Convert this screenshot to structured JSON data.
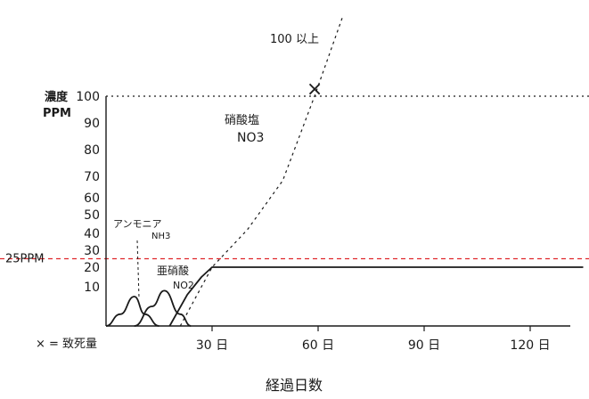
{
  "chart_data": {
    "type": "line",
    "title": "",
    "xlabel": "経過日数",
    "ylabel_line1": "濃度",
    "ylabel_line2": "PPM",
    "xlim": [
      -5,
      135
    ],
    "ylim": [
      0,
      100
    ],
    "x_ticks": [
      {
        "value": 30,
        "label": "30 日"
      },
      {
        "value": 60,
        "label": "60 日"
      },
      {
        "value": 90,
        "label": "90 日"
      },
      {
        "value": 120,
        "label": "120 日"
      }
    ],
    "y_ticks": [
      {
        "value": 10,
        "label": "10"
      },
      {
        "value": 20,
        "label": "20"
      },
      {
        "value": 30,
        "label": "30"
      },
      {
        "value": 40,
        "label": "40"
      },
      {
        "value": 50,
        "label": "50"
      },
      {
        "value": 60,
        "label": "60"
      },
      {
        "value": 70,
        "label": "70"
      },
      {
        "value": 80,
        "label": "80"
      },
      {
        "value": 90,
        "label": "90"
      },
      {
        "value": 100,
        "label": "100"
      }
    ],
    "y_scale_note": "nonlinear",
    "y_scale_map": [
      [
        0,
        0
      ],
      [
        10,
        10
      ],
      [
        20,
        20
      ],
      [
        30,
        30
      ],
      [
        40,
        40
      ],
      [
        50,
        50
      ],
      [
        60,
        60
      ],
      [
        70,
        70
      ],
      [
        80,
        80
      ],
      [
        90,
        90
      ],
      [
        100,
        100
      ]
    ],
    "reference_lines": [
      {
        "value": 25,
        "label": "25PPM",
        "color": "#e0262b",
        "style": "dashed"
      },
      {
        "value": 100,
        "label": "",
        "color": "#1a1a1a",
        "style": "dotted"
      }
    ],
    "series": [
      {
        "name": "アンモニア NH3",
        "style": "solid",
        "points": [
          [
            0,
            0
          ],
          [
            4,
            3
          ],
          [
            8,
            7.5
          ],
          [
            11,
            3
          ],
          [
            15,
            0
          ]
        ]
      },
      {
        "name": "亜硝酸 NO2",
        "style": "solid",
        "points": [
          [
            8,
            0
          ],
          [
            13,
            5
          ],
          [
            16.5,
            9
          ],
          [
            21,
            3
          ],
          [
            24,
            0
          ]
        ]
      },
      {
        "name": "硝酸塩 NO3 (flat)",
        "style": "solid",
        "points": [
          [
            18,
            0
          ],
          [
            23,
            8
          ],
          [
            27,
            15
          ],
          [
            30,
            20
          ],
          [
            135,
            20
          ]
        ]
      },
      {
        "name": "硝酸塩 NO3 (rising)",
        "style": "dashed",
        "points": [
          [
            21,
            0
          ],
          [
            30,
            20
          ],
          [
            40,
            42
          ],
          [
            50,
            68
          ],
          [
            59,
            100
          ],
          [
            67,
            130
          ]
        ]
      }
    ],
    "markers": [
      {
        "x": 59,
        "y": 103,
        "symbol": "×"
      }
    ],
    "annotations": {
      "ammonia_main": "アンモニア",
      "ammonia_sub": "NH3",
      "nitrite_main": "亜硝酸",
      "nitrite_sub": "NO2",
      "nitrate_main": "硝酸塩",
      "nitrate_sub": "NO3",
      "over100": "100 以上",
      "legend_note": "× = 致死量"
    },
    "colors": {
      "ink": "#1a1a1a",
      "reference": "#e0262b"
    },
    "grid": false
  }
}
